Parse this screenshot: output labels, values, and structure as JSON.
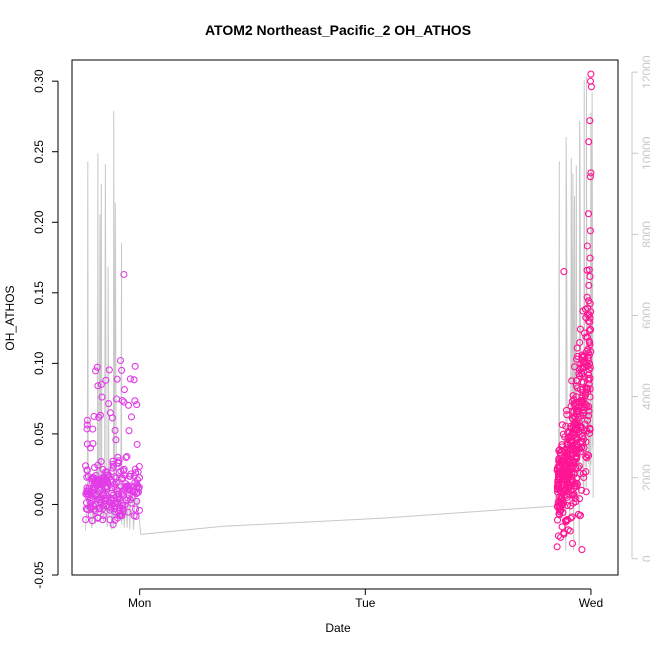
{
  "chart_data": {
    "type": "scatter",
    "title": "ATOM2 Northeast_Pacific_2 OH_ATHOS",
    "xlabel": "Date",
    "ylabel": "OH_ATHOS",
    "y2label": "",
    "x_ticks": [
      {
        "value": 0.93,
        "label": "Mon"
      },
      {
        "value": 1.93,
        "label": "Tue"
      },
      {
        "value": 2.93,
        "label": "Wed"
      }
    ],
    "xlim": [
      0.63,
      3.05
    ],
    "y_ticks": [
      -0.05,
      0.0,
      0.05,
      0.1,
      0.15,
      0.2,
      0.25,
      0.3
    ],
    "y_tick_labels": [
      "-0.05",
      "0.00",
      "0.05",
      "0.10",
      "0.15",
      "0.20",
      "0.25",
      "0.30"
    ],
    "ylim": [
      -0.05,
      0.315
    ],
    "y2_ticks": [
      0,
      2000,
      4000,
      6000,
      8000,
      10000,
      12000
    ],
    "y2_tick_labels": [
      "0",
      "2000",
      "4000",
      "6000",
      "8000",
      "10000",
      "12000"
    ],
    "y2lim": [
      -400,
      12300
    ],
    "grid": false,
    "legend": "none",
    "colors": {
      "points_early": "#e23ce6",
      "points_late": "#ff1493",
      "altitude_line": "#c8c8c8"
    },
    "series": [
      {
        "kind": "line",
        "axis": "right",
        "color": "#c8c8c8",
        "x": [
          0.69,
          0.695,
          0.7,
          0.705,
          0.71,
          0.715,
          0.72,
          0.725,
          0.73,
          0.735,
          0.74,
          0.745,
          0.75,
          0.755,
          0.76,
          0.765,
          0.77,
          0.775,
          0.78,
          0.785,
          0.79,
          0.795,
          0.8,
          0.805,
          0.81,
          0.815,
          0.82,
          0.825,
          0.83,
          0.835,
          0.84,
          0.845,
          0.85,
          0.855,
          0.86,
          0.865,
          0.87,
          0.875,
          0.88,
          0.885,
          0.89,
          0.895,
          0.9,
          0.91,
          2.78,
          2.785,
          2.79,
          2.795,
          2.8,
          2.805,
          2.81,
          2.815,
          2.82,
          2.825,
          2.83,
          2.835,
          2.84,
          2.845,
          2.85,
          2.855,
          2.86,
          2.865,
          2.87,
          2.875,
          2.88,
          2.885,
          2.89,
          2.895,
          2.9,
          2.905,
          2.91,
          2.915,
          2.92,
          2.925,
          2.93,
          2.935,
          2.94
        ],
        "y": [
          400,
          2500,
          9800,
          9850,
          9850,
          1200,
          2000,
          800,
          1500,
          1000,
          10000,
          2500,
          9300,
          9200,
          9200,
          1100,
          1500,
          900,
          800,
          1300,
          7200,
          1000,
          2000,
          700,
          1400,
          11000,
          1200,
          2500,
          800,
          1100,
          1000,
          7800,
          7800,
          1000,
          1500,
          1200,
          800,
          1000,
          900,
          700,
          1200,
          800,
          1000,
          600,
          1000,
          2000,
          9800,
          1500,
          200,
          2500,
          400,
          1800,
          10400,
          200,
          3000,
          1500,
          1000,
          200,
          9500,
          1500,
          200,
          9700,
          200,
          2500,
          10800,
          5000,
          7000,
          8500,
          10500,
          8000,
          11800,
          11800,
          11900,
          12000,
          11000,
          11000,
          1500
        ],
        "points_str": "96,548 98,448 101,173 103,172 105,172 107,510 109,474 111,528 113,497 115,519 117,163 119,448 121,195 123,199 125,199 127,514 129,497 131,523 133,528 135,505 137,240 139,519 141,474 143,532 145,501 147,128 149,510 151,448 153,528 155,514 157,519 159,212 161,212 163,519 165,497 167,510 169,528 171,519 173,523 175,532 177,510 179,528 181,519 183,537"
      },
      {
        "kind": "scatter",
        "axis": "left",
        "name": "",
        "note_early_cluster": "approx. 250 points, x in [0.69, 0.93], y mostly between -0.03 and 0.05, scattered up to 0.16",
        "note_late_cluster": "approx. 400 points, x in [2.78, 2.93], y between -0.03 and 0.31, increasing with time",
        "x_early_range": [
          0.69,
          0.93
        ],
        "x_late_range": [
          2.78,
          2.93
        ],
        "y_range": [
          -0.04,
          0.31
        ]
      }
    ]
  }
}
